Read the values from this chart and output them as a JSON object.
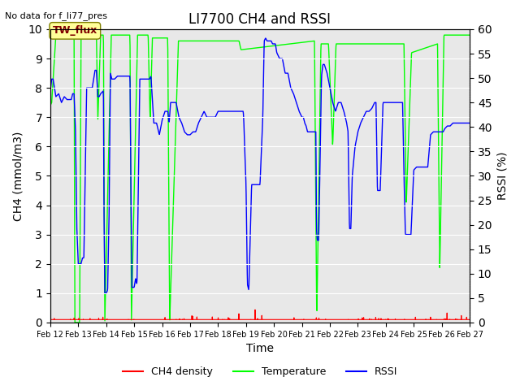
{
  "title": "LI7700 CH4 and RSSI",
  "top_left_text": "No data for f_li77_pres",
  "annotation_text": "TW_flux",
  "xlabel": "Time",
  "ylabel_left": "CH4 (mmol/m3)",
  "ylabel_right": "RSSI (%)",
  "xlim_days": [
    12,
    27
  ],
  "ylim_left": [
    0,
    10.0
  ],
  "ylim_right": [
    0,
    60
  ],
  "yticks_left": [
    0.0,
    1.0,
    2.0,
    3.0,
    4.0,
    5.0,
    6.0,
    7.0,
    8.0,
    9.0,
    10.0
  ],
  "yticks_right": [
    0,
    5,
    10,
    15,
    20,
    25,
    30,
    35,
    40,
    45,
    50,
    55,
    60
  ],
  "xtick_labels": [
    "Feb 12",
    "Feb 13",
    "Feb 14",
    "Feb 15",
    "Feb 16",
    "Feb 17",
    "Feb 18",
    "Feb 19",
    "Feb 20",
    "Feb 21",
    "Feb 22",
    "Feb 23",
    "Feb 24",
    "Feb 25",
    "Feb 26",
    "Feb 27"
  ],
  "bg_color": "#e8e8e8",
  "line_ch4_color": "#ff0000",
  "line_temp_color": "#00ff00",
  "line_rssi_color": "#0000ff",
  "legend_labels": [
    "CH4 density",
    "Temperature",
    "RSSI"
  ],
  "grid_color": "#ffffff",
  "annotation_bg": "#ffff99",
  "annotation_text_color": "#800000"
}
